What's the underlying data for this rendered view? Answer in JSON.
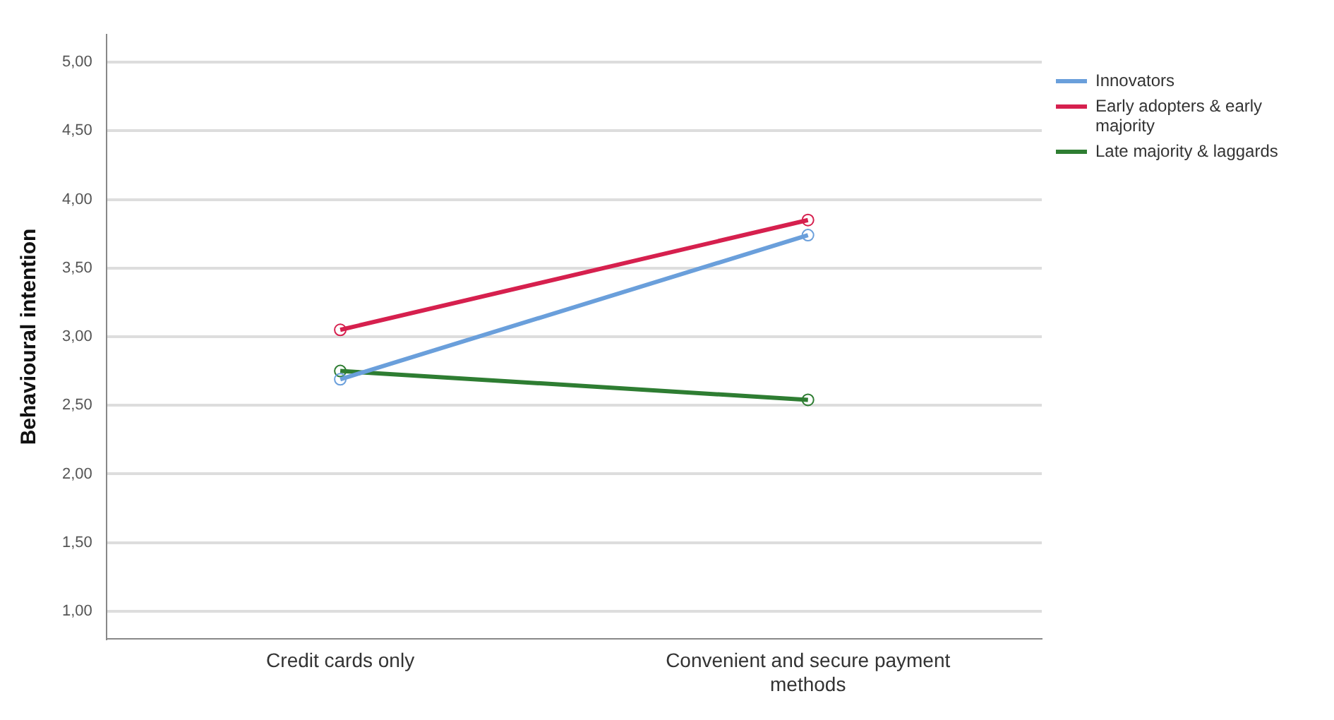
{
  "chart_data": {
    "type": "line",
    "ylabel": "Behavioural intention",
    "categories": [
      "Credit cards only",
      "Convenient and secure payment methods"
    ],
    "series": [
      {
        "name": "Innovators",
        "color": "#6a9fdb",
        "values": [
          2.69,
          3.74
        ]
      },
      {
        "name": "Early adopters & early majority",
        "color": "#d6204e",
        "values": [
          3.05,
          3.85
        ]
      },
      {
        "name": "Late majority & laggards",
        "color": "#2e7d32",
        "values": [
          2.75,
          2.54
        ]
      }
    ],
    "ylim": [
      0.8,
      5.2
    ],
    "yticks": [
      {
        "value": 1,
        "label": "1,00"
      },
      {
        "value": 1.5,
        "label": "1,50"
      },
      {
        "value": 2,
        "label": "2,00"
      },
      {
        "value": 2.5,
        "label": "2,50"
      },
      {
        "value": 3,
        "label": "3,00"
      },
      {
        "value": 3.5,
        "label": "3,50"
      },
      {
        "value": 4,
        "label": "4,00"
      },
      {
        "value": 4.5,
        "label": "4,50"
      },
      {
        "value": 5,
        "label": "5,00"
      }
    ],
    "grid": "y",
    "legend": "top right",
    "marker": "circle",
    "line_style": "solid"
  }
}
